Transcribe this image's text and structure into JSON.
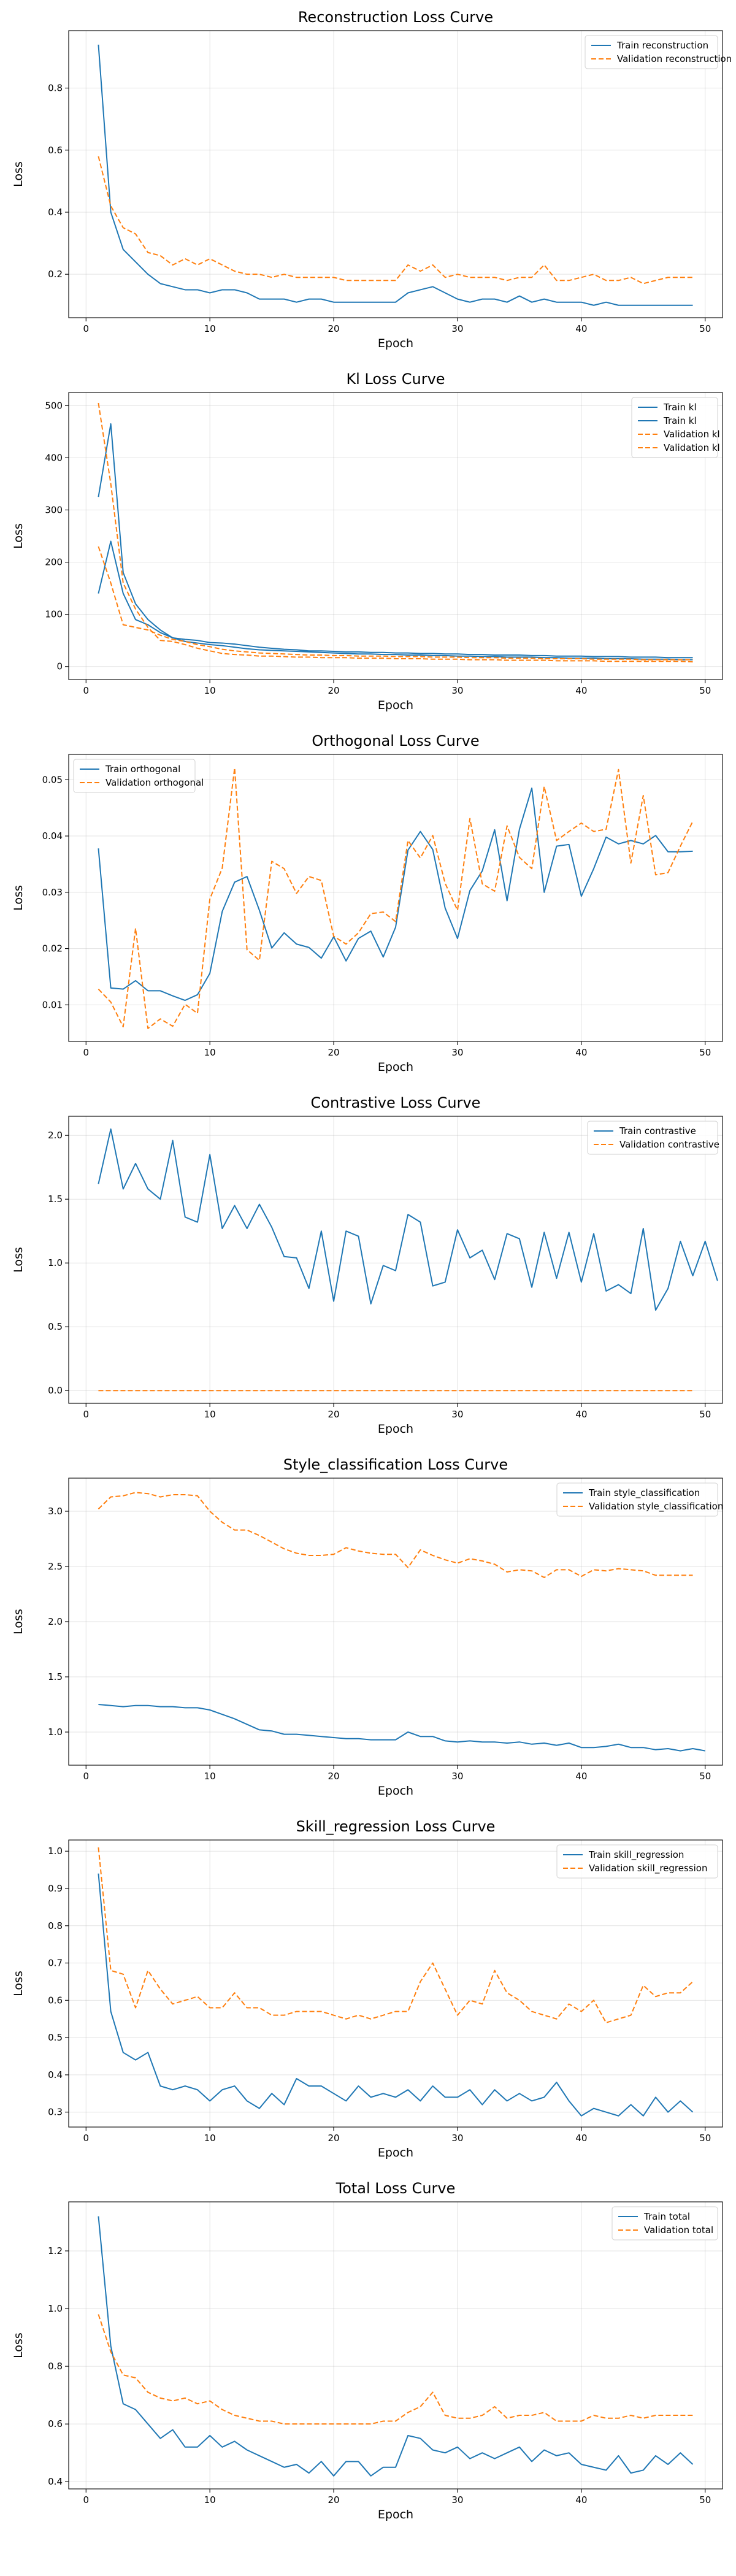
{
  "colors": {
    "train": "#1f77b4",
    "validation": "#ff7f0e"
  },
  "chart_data": [
    {
      "type": "line",
      "title": "Reconstruction Loss Curve",
      "xlabel": "Epoch",
      "ylabel": "Loss",
      "xlim": [
        -1.4,
        51.4
      ],
      "ylim": [
        0.06,
        0.985
      ],
      "xticks": [
        0,
        10,
        20,
        30,
        40,
        50
      ],
      "yticks": [
        0.2,
        0.4,
        0.6,
        0.8
      ],
      "grid": true,
      "legend_position": "top-right",
      "series": [
        {
          "name": "Train reconstruction",
          "style": "solid",
          "color": "#1f77b4",
          "values": [
            0.94,
            0.4,
            0.28,
            0.24,
            0.2,
            0.17,
            0.16,
            0.15,
            0.15,
            0.14,
            0.15,
            0.15,
            0.14,
            0.12,
            0.12,
            0.12,
            0.11,
            0.12,
            0.12,
            0.11,
            0.11,
            0.11,
            0.11,
            0.11,
            0.11,
            0.14,
            0.15,
            0.16,
            0.14,
            0.12,
            0.11,
            0.12,
            0.12,
            0.11,
            0.13,
            0.11,
            0.12,
            0.11,
            0.11,
            0.11,
            0.1,
            0.11,
            0.1,
            0.1,
            0.1,
            0.1,
            0.1,
            0.1,
            0.1
          ]
        },
        {
          "name": "Validation reconstruction",
          "style": "dashed",
          "color": "#ff7f0e",
          "values": [
            0.58,
            0.42,
            0.35,
            0.33,
            0.27,
            0.26,
            0.23,
            0.25,
            0.23,
            0.25,
            0.23,
            0.21,
            0.2,
            0.2,
            0.19,
            0.2,
            0.19,
            0.19,
            0.19,
            0.19,
            0.18,
            0.18,
            0.18,
            0.18,
            0.18,
            0.23,
            0.21,
            0.23,
            0.19,
            0.2,
            0.19,
            0.19,
            0.19,
            0.18,
            0.19,
            0.19,
            0.23,
            0.18,
            0.18,
            0.19,
            0.2,
            0.18,
            0.18,
            0.19,
            0.17,
            0.18,
            0.19,
            0.19,
            0.19
          ]
        }
      ]
    },
    {
      "type": "line",
      "title": "Kl Loss Curve",
      "xlabel": "Epoch",
      "ylabel": "Loss",
      "xlim": [
        -1.4,
        51.4
      ],
      "ylim": [
        -25,
        525
      ],
      "xticks": [
        0,
        10,
        20,
        30,
        40,
        50
      ],
      "yticks": [
        0,
        100,
        200,
        300,
        400,
        500
      ],
      "grid": true,
      "legend_position": "top-right",
      "series": [
        {
          "name": "Train kl",
          "style": "solid",
          "color": "#1f77b4",
          "values": [
            325,
            465,
            180,
            120,
            90,
            70,
            55,
            52,
            50,
            46,
            45,
            43,
            40,
            37,
            35,
            33,
            32,
            30,
            30,
            29,
            28,
            28,
            27,
            27,
            26,
            26,
            25,
            25,
            24,
            24,
            23,
            23,
            22,
            22,
            22,
            21,
            21,
            20,
            20,
            20,
            19,
            19,
            19,
            18,
            18,
            18,
            17,
            17,
            17
          ]
        },
        {
          "name": "Train kl",
          "style": "solid",
          "color": "#1f77b4",
          "values": [
            140,
            240,
            140,
            90,
            80,
            65,
            55,
            48,
            45,
            42,
            40,
            37,
            34,
            32,
            31,
            30,
            29,
            28,
            27,
            26,
            25,
            24,
            24,
            23,
            23,
            22,
            22,
            21,
            21,
            20,
            20,
            19,
            19,
            18,
            18,
            18,
            17,
            17,
            16,
            16,
            16,
            15,
            15,
            15,
            14,
            14,
            14,
            13,
            13
          ]
        },
        {
          "name": "Validation kl",
          "style": "dashed",
          "color": "#ff7f0e",
          "values": [
            505,
            350,
            160,
            110,
            75,
            50,
            48,
            42,
            35,
            30,
            25,
            23,
            22,
            20,
            20,
            19,
            18,
            18,
            17,
            17,
            17,
            16,
            16,
            16,
            15,
            15,
            15,
            14,
            14,
            14,
            13,
            13,
            13,
            12,
            12,
            12,
            12,
            11,
            11,
            11,
            11,
            10,
            10,
            10,
            10,
            10,
            10,
            10,
            9
          ]
        },
        {
          "name": "Validation kl",
          "style": "dashed",
          "color": "#ff7f0e",
          "values": [
            230,
            160,
            80,
            75,
            70,
            60,
            52,
            48,
            42,
            38,
            33,
            30,
            28,
            26,
            25,
            24,
            23,
            22,
            22,
            21,
            21,
            20,
            20,
            20,
            19,
            19,
            19,
            18,
            18,
            18,
            17,
            17,
            17,
            16,
            16,
            16,
            15,
            15,
            15,
            15,
            14,
            14,
            14,
            14,
            13,
            13,
            13,
            13,
            13
          ]
        }
      ]
    },
    {
      "type": "line",
      "title": "Orthogonal Loss Curve",
      "xlabel": "Epoch",
      "ylabel": "Loss",
      "xlim": [
        -1.4,
        51.4
      ],
      "ylim": [
        0.0035,
        0.0545
      ],
      "xticks": [
        0,
        10,
        20,
        30,
        40,
        50
      ],
      "yticks": [
        0.01,
        0.02,
        0.03,
        0.04,
        0.05
      ],
      "grid": true,
      "legend_position": "top-left",
      "series": [
        {
          "name": "Train orthogonal",
          "style": "solid",
          "color": "#1f77b4",
          "values": [
            0.0378,
            0.013,
            0.0128,
            0.0143,
            0.0125,
            0.0125,
            0.0116,
            0.0108,
            0.0118,
            0.0156,
            0.0266,
            0.0318,
            0.0328,
            0.0268,
            0.0201,
            0.0228,
            0.0208,
            0.0202,
            0.0183,
            0.0221,
            0.0178,
            0.0218,
            0.0231,
            0.0185,
            0.0238,
            0.0375,
            0.0408,
            0.0376,
            0.0272,
            0.0218,
            0.0303,
            0.0338,
            0.0411,
            0.0285,
            0.0412,
            0.0485,
            0.03,
            0.0382,
            0.0385,
            0.0293,
            0.0342,
            0.0398,
            0.0386,
            0.0392,
            0.0386,
            0.0401,
            0.0372,
            0.0372,
            0.0373
          ]
        },
        {
          "name": "Validation orthogonal",
          "style": "dashed",
          "color": "#ff7f0e",
          "values": [
            0.0128,
            0.0105,
            0.0061,
            0.0236,
            0.0058,
            0.0075,
            0.0062,
            0.0101,
            0.0085,
            0.0288,
            0.0343,
            0.0521,
            0.0198,
            0.0179,
            0.0355,
            0.0342,
            0.0298,
            0.0328,
            0.0321,
            0.0222,
            0.0208,
            0.0228,
            0.0262,
            0.0265,
            0.0248,
            0.0392,
            0.0361,
            0.0401,
            0.0316,
            0.0268,
            0.0431,
            0.0315,
            0.0302,
            0.0418,
            0.0362,
            0.0342,
            0.0488,
            0.0392,
            0.0408,
            0.0423,
            0.0408,
            0.0412,
            0.0518,
            0.0352,
            0.0472,
            0.0331,
            0.0335,
            0.0382,
            0.0426
          ]
        }
      ]
    },
    {
      "type": "line",
      "title": "Contrastive Loss Curve",
      "xlabel": "Epoch",
      "ylabel": "Loss",
      "xlim": [
        -1.4,
        51.4
      ],
      "ylim": [
        -0.1,
        2.15
      ],
      "xticks": [
        0,
        10,
        20,
        30,
        40,
        50
      ],
      "yticks": [
        0.0,
        0.5,
        1.0,
        1.5,
        2.0
      ],
      "grid": true,
      "legend_position": "top-right",
      "series": [
        {
          "name": "Train contrastive",
          "style": "solid",
          "color": "#1f77b4",
          "values": [
            1.62,
            2.05,
            1.58,
            1.78,
            1.58,
            1.5,
            1.96,
            1.36,
            1.32,
            1.85,
            1.27,
            1.45,
            1.27,
            1.46,
            1.28,
            1.05,
            1.04,
            0.8,
            1.25,
            0.7,
            1.25,
            1.21,
            0.68,
            0.98,
            0.94,
            1.38,
            1.32,
            0.82,
            0.85,
            1.26,
            1.04,
            1.1,
            0.87,
            1.23,
            1.19,
            0.81,
            1.24,
            0.88,
            1.24,
            0.85,
            1.23,
            0.78,
            0.83,
            0.76,
            1.27,
            0.63,
            0.8,
            1.17,
            0.9,
            1.17,
            0.86
          ]
        },
        {
          "name": "Validation contrastive",
          "style": "dashed",
          "color": "#ff7f0e",
          "values": [
            0.0,
            0.0,
            0.0,
            0.0,
            0.0,
            0.0,
            0.0,
            0.0,
            0.0,
            0.0,
            0.0,
            0.0,
            0.0,
            0.0,
            0.0,
            0.0,
            0.0,
            0.0,
            0.0,
            0.0,
            0.0,
            0.0,
            0.0,
            0.0,
            0.0,
            0.0,
            0.0,
            0.0,
            0.0,
            0.0,
            0.0,
            0.0,
            0.0,
            0.0,
            0.0,
            0.0,
            0.0,
            0.0,
            0.0,
            0.0,
            0.0,
            0.0,
            0.0,
            0.0,
            0.0,
            0.0,
            0.0,
            0.0,
            0.0
          ]
        }
      ]
    },
    {
      "type": "line",
      "title": "Style_classification Loss Curve",
      "xlabel": "Epoch",
      "ylabel": "Loss",
      "xlim": [
        -1.4,
        51.4
      ],
      "ylim": [
        0.7,
        3.3
      ],
      "xticks": [
        0,
        10,
        20,
        30,
        40,
        50
      ],
      "yticks": [
        1.0,
        1.5,
        2.0,
        2.5,
        3.0
      ],
      "grid": true,
      "legend_position": "top-right",
      "series": [
        {
          "name": "Train style_classification",
          "style": "solid",
          "color": "#1f77b4",
          "values": [
            1.25,
            1.24,
            1.23,
            1.24,
            1.24,
            1.23,
            1.23,
            1.22,
            1.22,
            1.2,
            1.16,
            1.12,
            1.07,
            1.02,
            1.01,
            0.98,
            0.98,
            0.97,
            0.96,
            0.95,
            0.94,
            0.94,
            0.93,
            0.93,
            0.93,
            1.0,
            0.96,
            0.96,
            0.92,
            0.91,
            0.92,
            0.91,
            0.91,
            0.9,
            0.91,
            0.89,
            0.9,
            0.88,
            0.9,
            0.86,
            0.86,
            0.87,
            0.89,
            0.86,
            0.86,
            0.84,
            0.85,
            0.83,
            0.85,
            0.83
          ]
        },
        {
          "name": "Validation style_classification",
          "style": "dashed",
          "color": "#ff7f0e",
          "values": [
            3.02,
            3.13,
            3.14,
            3.17,
            3.16,
            3.13,
            3.15,
            3.15,
            3.14,
            3.0,
            2.9,
            2.83,
            2.83,
            2.78,
            2.72,
            2.66,
            2.62,
            2.6,
            2.6,
            2.61,
            2.67,
            2.64,
            2.62,
            2.61,
            2.61,
            2.49,
            2.65,
            2.6,
            2.56,
            2.53,
            2.57,
            2.55,
            2.52,
            2.45,
            2.47,
            2.46,
            2.4,
            2.47,
            2.47,
            2.41,
            2.47,
            2.46,
            2.48,
            2.47,
            2.46,
            2.42,
            2.42,
            2.42,
            2.42
          ]
        }
      ]
    },
    {
      "type": "line",
      "title": "Skill_regression Loss Curve",
      "xlabel": "Epoch",
      "ylabel": "Loss",
      "xlim": [
        -1.4,
        51.4
      ],
      "ylim": [
        0.26,
        1.03
      ],
      "xticks": [
        0,
        10,
        20,
        30,
        40,
        50
      ],
      "yticks": [
        0.3,
        0.4,
        0.5,
        0.6,
        0.7,
        0.8,
        0.9,
        1.0
      ],
      "grid": true,
      "legend_position": "top-right",
      "series": [
        {
          "name": "Train skill_regression",
          "style": "solid",
          "color": "#1f77b4",
          "values": [
            0.94,
            0.57,
            0.46,
            0.44,
            0.46,
            0.37,
            0.36,
            0.37,
            0.36,
            0.33,
            0.36,
            0.37,
            0.33,
            0.31,
            0.35,
            0.32,
            0.39,
            0.37,
            0.37,
            0.35,
            0.33,
            0.37,
            0.34,
            0.35,
            0.34,
            0.36,
            0.33,
            0.37,
            0.34,
            0.34,
            0.36,
            0.32,
            0.36,
            0.33,
            0.35,
            0.33,
            0.34,
            0.38,
            0.33,
            0.29,
            0.31,
            0.3,
            0.29,
            0.32,
            0.29,
            0.34,
            0.3,
            0.33,
            0.3
          ]
        },
        {
          "name": "Validation skill_regression",
          "style": "dashed",
          "color": "#ff7f0e",
          "values": [
            1.01,
            0.68,
            0.67,
            0.58,
            0.68,
            0.63,
            0.59,
            0.6,
            0.61,
            0.58,
            0.58,
            0.62,
            0.58,
            0.58,
            0.56,
            0.56,
            0.57,
            0.57,
            0.57,
            0.56,
            0.55,
            0.56,
            0.55,
            0.56,
            0.57,
            0.57,
            0.65,
            0.7,
            0.63,
            0.56,
            0.6,
            0.59,
            0.68,
            0.62,
            0.6,
            0.57,
            0.56,
            0.55,
            0.59,
            0.57,
            0.6,
            0.54,
            0.55,
            0.56,
            0.64,
            0.61,
            0.62,
            0.62,
            0.65
          ]
        }
      ]
    },
    {
      "type": "line",
      "title": "Total Loss Curve",
      "xlabel": "Epoch",
      "ylabel": "Loss",
      "xlim": [
        -1.4,
        51.4
      ],
      "ylim": [
        0.375,
        1.37
      ],
      "xticks": [
        0,
        10,
        20,
        30,
        40,
        50
      ],
      "yticks": [
        0.4,
        0.6,
        0.8,
        1.0,
        1.2
      ],
      "grid": true,
      "legend_position": "top-right",
      "series": [
        {
          "name": "Train total",
          "style": "solid",
          "color": "#1f77b4",
          "values": [
            1.32,
            0.87,
            0.67,
            0.65,
            0.6,
            0.55,
            0.58,
            0.52,
            0.52,
            0.56,
            0.52,
            0.54,
            0.51,
            0.49,
            0.47,
            0.45,
            0.46,
            0.43,
            0.47,
            0.42,
            0.47,
            0.47,
            0.42,
            0.45,
            0.45,
            0.56,
            0.55,
            0.51,
            0.5,
            0.52,
            0.48,
            0.5,
            0.48,
            0.5,
            0.52,
            0.47,
            0.51,
            0.49,
            0.5,
            0.46,
            0.45,
            0.44,
            0.49,
            0.43,
            0.44,
            0.49,
            0.46,
            0.5,
            0.46
          ]
        },
        {
          "name": "Validation total",
          "style": "dashed",
          "color": "#ff7f0e",
          "values": [
            0.98,
            0.85,
            0.77,
            0.76,
            0.71,
            0.69,
            0.68,
            0.69,
            0.67,
            0.68,
            0.65,
            0.63,
            0.62,
            0.61,
            0.61,
            0.6,
            0.6,
            0.6,
            0.6,
            0.6,
            0.6,
            0.6,
            0.6,
            0.61,
            0.61,
            0.64,
            0.66,
            0.71,
            0.63,
            0.62,
            0.62,
            0.63,
            0.66,
            0.62,
            0.63,
            0.63,
            0.64,
            0.61,
            0.61,
            0.61,
            0.63,
            0.62,
            0.62,
            0.63,
            0.62,
            0.63,
            0.63,
            0.63,
            0.63
          ]
        }
      ]
    }
  ]
}
